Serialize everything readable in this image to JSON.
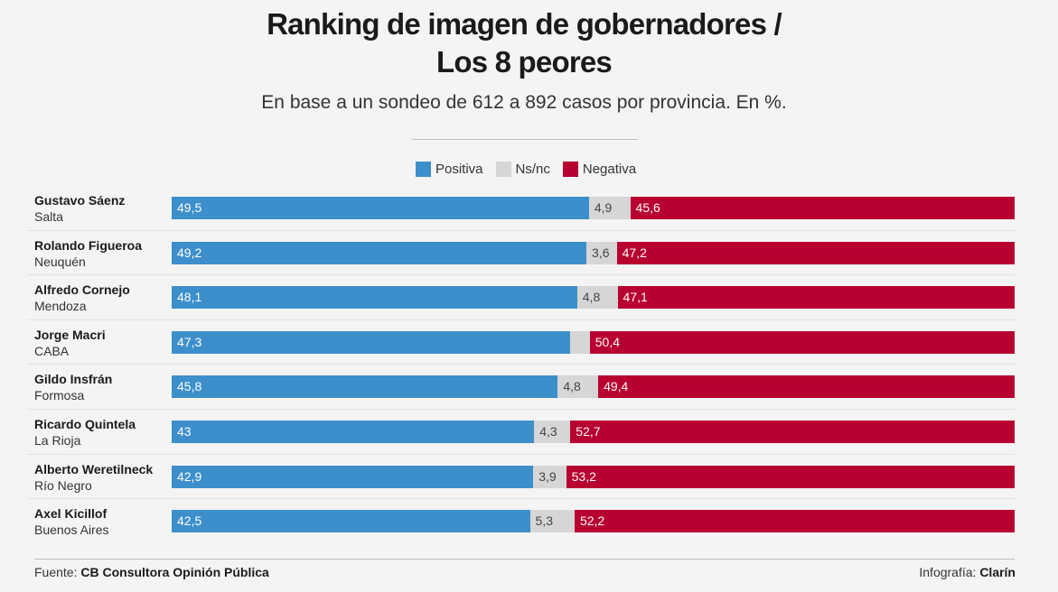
{
  "header": {
    "title_line1": "Ranking de imagen de gobernadores /",
    "title_line2": "Los 8 peores",
    "subtitle": "En base a un sondeo de 612 a 892 casos por provincia. En %."
  },
  "legend": [
    {
      "label": "Positiva",
      "color": "#3d8fcb"
    },
    {
      "label": "Ns/nc",
      "color": "#d6d6d6"
    },
    {
      "label": "Negativa",
      "color": "#b7002f"
    }
  ],
  "chart_data": {
    "type": "bar",
    "orientation": "horizontal",
    "stacked": true,
    "title": "Ranking de imagen de gobernadores / Los 8 peores",
    "subtitle": "En base a un sondeo de 612 a 892 casos por provincia. En %.",
    "categories": [
      "Gustavo Sáenz",
      "Rolando Figueroa",
      "Alfredo Cornejo",
      "Jorge Macri",
      "Gildo Insfrán",
      "Ricardo Quintela",
      "Alberto Weretilneck",
      "Axel Kicillof"
    ],
    "provinces": [
      "Salta",
      "Neuquén",
      "Mendoza",
      "CABA",
      "Formosa",
      "La Rioja",
      "Río Negro",
      "Buenos Aires"
    ],
    "series": [
      {
        "name": "Positiva",
        "color": "#3d8fcb",
        "values": [
          49.5,
          49.2,
          48.1,
          47.3,
          45.8,
          43,
          42.9,
          42.5
        ],
        "labels": [
          "49,5",
          "49,2",
          "48,1",
          "47,3",
          "45,8",
          "43",
          "42,9",
          "42,5"
        ]
      },
      {
        "name": "Ns/nc",
        "color": "#d6d6d6",
        "values": [
          4.9,
          3.6,
          4.8,
          2.3,
          4.8,
          4.3,
          3.9,
          5.3
        ],
        "labels": [
          "4,9",
          "3,6",
          "4,8",
          "",
          "4,8",
          "4,3",
          "3,9",
          "5,3"
        ]
      },
      {
        "name": "Negativa",
        "color": "#b7002f",
        "values": [
          45.6,
          47.2,
          47.1,
          50.4,
          49.4,
          52.7,
          53.2,
          52.2
        ],
        "labels": [
          "45,6",
          "47,2",
          "47,1",
          "50,4",
          "49,4",
          "52,7",
          "53,2",
          "52,2"
        ]
      }
    ],
    "legend_position": "top-center",
    "grid": false
  },
  "footer": {
    "source_prefix": "Fuente: ",
    "source_name": "CB Consultora Opinión Pública",
    "credit_prefix": "Infografía: ",
    "credit_name": "Clarín"
  }
}
